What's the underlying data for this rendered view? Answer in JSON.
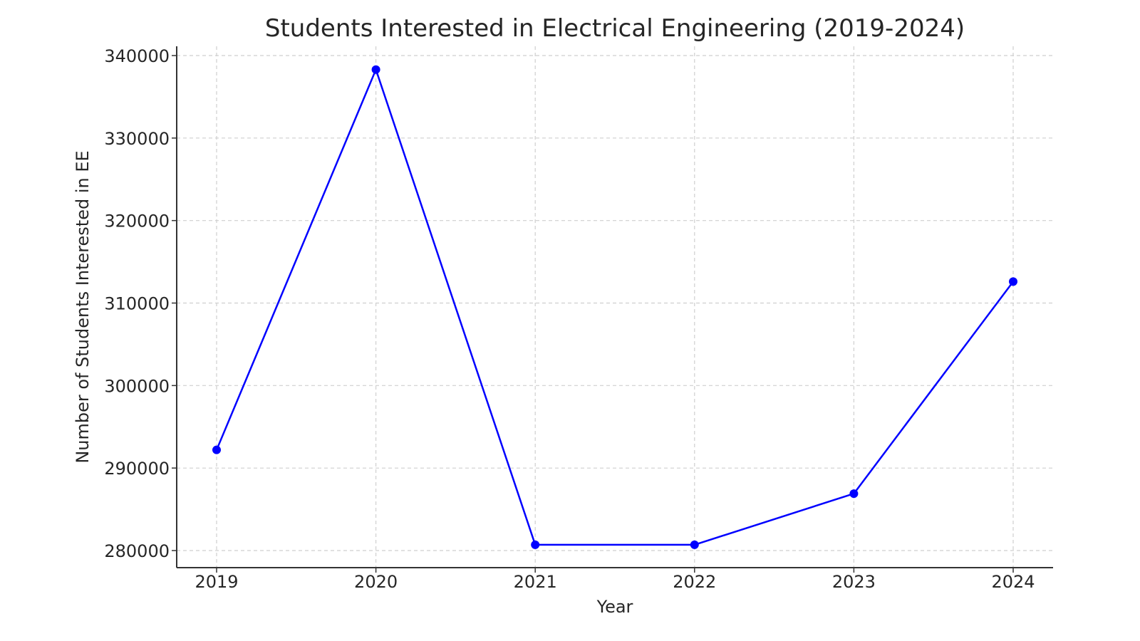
{
  "chart_data": {
    "type": "line",
    "title": "Students Interested in Electrical Engineering (2019-2024)",
    "xlabel": "Year",
    "ylabel": "Number of Students Interested in EE",
    "categories": [
      "2019",
      "2020",
      "2021",
      "2022",
      "2023",
      "2024"
    ],
    "series": [
      {
        "name": "Students Interested in EE",
        "values": [
          292200,
          338300,
          280700,
          280700,
          286900,
          312600
        ],
        "color": "#0000ff",
        "marker": "circle"
      }
    ],
    "x_tick_labels": [
      "2019",
      "2020",
      "2021",
      "2022",
      "2023",
      "2024"
    ],
    "y_tick_values": [
      280000,
      290000,
      300000,
      310000,
      320000,
      330000,
      340000
    ],
    "y_tick_labels": [
      "280000",
      "290000",
      "300000",
      "310000",
      "320000",
      "330000",
      "340000"
    ],
    "ylim": [
      278000,
      341000
    ],
    "grid": true,
    "grid_style": "dashed",
    "legend": null
  }
}
